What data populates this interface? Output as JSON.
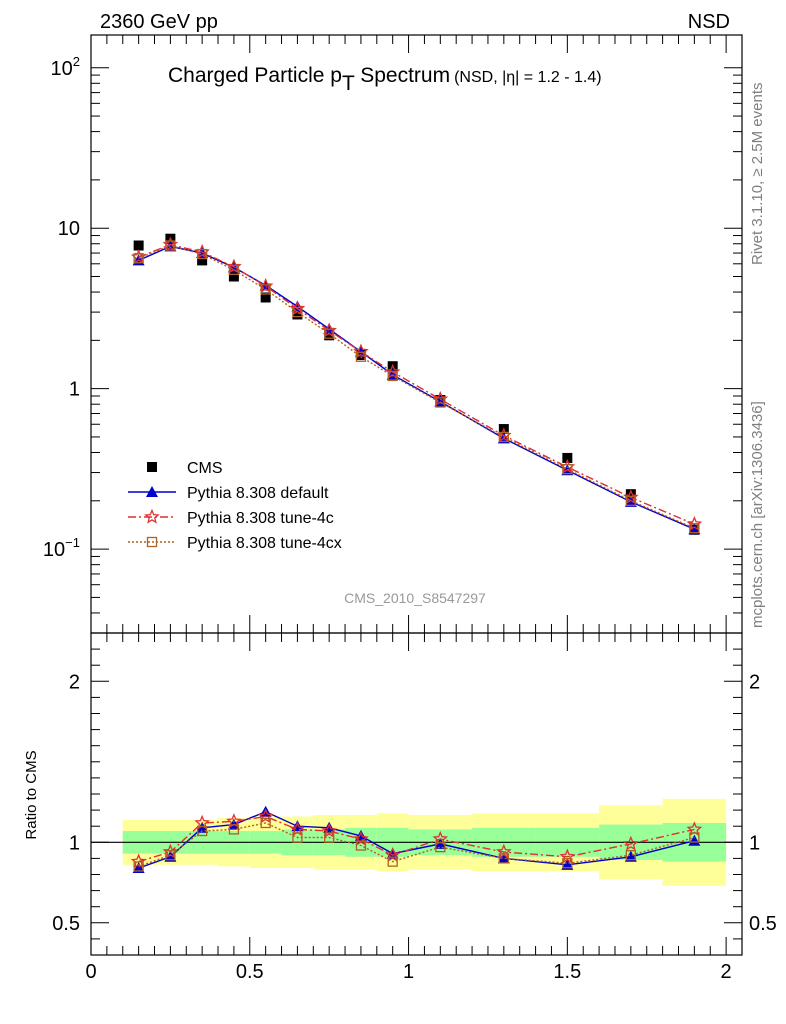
{
  "header": {
    "left": "2360 GeV pp",
    "right": "NSD"
  },
  "side_labels": {
    "rivet": "Rivet 3.1.10, ≥ 2.5M events",
    "mcplots": "mcplots.cern.ch [arXiv:1306.3436]"
  },
  "watermark": "CMS_2010_S8547297",
  "chart_data": [
    {
      "type": "scatter",
      "panel": "main",
      "title_main": "Charged Particle p",
      "title_sub_T": "T",
      "title_main2": " Spectrum",
      "title_extra": "(NSD, |η| = 1.2 - 1.4)",
      "xlabel": "",
      "ylabel": "",
      "xlim": [
        0,
        2.05
      ],
      "ylim": [
        0.03,
        160
      ],
      "yscale": "log",
      "y_tick_labels": [
        {
          "base": "10",
          "exp": "2",
          "value": 100
        },
        {
          "base": "10",
          "exp": "",
          "value": 10
        },
        {
          "base": "1",
          "exp": "",
          "value": 1
        },
        {
          "base": "10",
          "exp": "−1",
          "value": 0.1
        }
      ],
      "x": [
        0.15,
        0.25,
        0.35,
        0.45,
        0.55,
        0.65,
        0.75,
        0.85,
        0.95,
        1.1,
        1.3,
        1.5,
        1.7,
        1.9
      ],
      "series": [
        {
          "name": "CMS",
          "style": "data",
          "color": "#000000",
          "marker": "square",
          "values": [
            7.8,
            8.6,
            6.3,
            5.0,
            3.7,
            2.9,
            2.15,
            1.62,
            1.38,
            0.85,
            0.56,
            0.37,
            0.22,
            0.132
          ]
        },
        {
          "name": "Pythia 8.308 default",
          "style": "solid",
          "color": "#0000cc",
          "marker": "triangle",
          "values": [
            6.3,
            7.7,
            7.0,
            5.7,
            4.4,
            3.25,
            2.35,
            1.7,
            1.22,
            0.83,
            0.49,
            0.31,
            0.197,
            0.133
          ]
        },
        {
          "name": "Pythia 8.308 tune-4c",
          "style": "dashdot",
          "color": "#e03030",
          "marker": "star",
          "values": [
            6.6,
            7.9,
            7.1,
            5.75,
            4.35,
            3.15,
            2.3,
            1.7,
            1.27,
            0.86,
            0.51,
            0.325,
            0.21,
            0.143
          ]
        },
        {
          "name": "Pythia 8.308 tune-4cx",
          "style": "dotted",
          "color": "#b06020",
          "marker": "opensquare",
          "values": [
            6.5,
            7.8,
            6.9,
            5.5,
            4.15,
            3.0,
            2.2,
            1.58,
            1.2,
            0.82,
            0.5,
            0.315,
            0.2,
            0.135
          ]
        }
      ]
    },
    {
      "type": "line",
      "panel": "ratio",
      "ylabel": "Ratio to CMS",
      "xlim": [
        0,
        2.05
      ],
      "ylim": [
        0.3,
        2.3
      ],
      "x_ticks": [
        0,
        0.5,
        1,
        1.5,
        2
      ],
      "x_tick_labels": [
        "0",
        "0.5",
        "1",
        "1.5",
        "2"
      ],
      "y_ticks": [
        0.5,
        1,
        2
      ],
      "y_tick_labels": [
        "0.5",
        "1",
        "2"
      ],
      "bands": {
        "edges": [
          0.1,
          0.2,
          0.3,
          0.4,
          0.5,
          0.6,
          0.7,
          0.8,
          0.9,
          1.0,
          1.2,
          1.4,
          1.6,
          1.8,
          2.0
        ],
        "stat_low": [
          0.93,
          0.93,
          0.93,
          0.93,
          0.93,
          0.92,
          0.92,
          0.91,
          0.91,
          0.92,
          0.91,
          0.91,
          0.89,
          0.88
        ],
        "stat_high": [
          1.07,
          1.07,
          1.07,
          1.07,
          1.07,
          1.08,
          1.08,
          1.09,
          1.09,
          1.08,
          1.09,
          1.09,
          1.11,
          1.12
        ],
        "sys_low": [
          0.86,
          0.86,
          0.86,
          0.85,
          0.84,
          0.84,
          0.83,
          0.83,
          0.82,
          0.83,
          0.82,
          0.82,
          0.77,
          0.73
        ],
        "sys_high": [
          1.14,
          1.14,
          1.14,
          1.15,
          1.16,
          1.16,
          1.17,
          1.17,
          1.18,
          1.17,
          1.18,
          1.18,
          1.23,
          1.27
        ],
        "stat_color": "#99ff99",
        "sys_color": "#ffff99"
      },
      "x": [
        0.15,
        0.25,
        0.35,
        0.45,
        0.55,
        0.65,
        0.75,
        0.85,
        0.95,
        1.1,
        1.3,
        1.5,
        1.7,
        1.9
      ],
      "series": [
        {
          "name": "Pythia 8.308 default",
          "style": "solid",
          "color": "#0000cc",
          "marker": "triangle",
          "values": [
            0.84,
            0.91,
            1.09,
            1.11,
            1.19,
            1.1,
            1.09,
            1.04,
            0.93,
            0.99,
            0.9,
            0.86,
            0.91,
            1.01
          ]
        },
        {
          "name": "Pythia 8.308 tune-4c",
          "style": "dashdot",
          "color": "#e03030",
          "marker": "star",
          "values": [
            0.88,
            0.94,
            1.12,
            1.13,
            1.16,
            1.08,
            1.07,
            1.02,
            0.92,
            1.02,
            0.94,
            0.91,
            0.99,
            1.08
          ]
        },
        {
          "name": "Pythia 8.308 tune-4cx",
          "style": "dotted",
          "color": "#b06020",
          "marker": "opensquare",
          "values": [
            0.85,
            0.92,
            1.07,
            1.08,
            1.12,
            1.03,
            1.03,
            0.98,
            0.88,
            0.97,
            0.9,
            0.87,
            0.92,
            1.03
          ]
        }
      ]
    }
  ]
}
